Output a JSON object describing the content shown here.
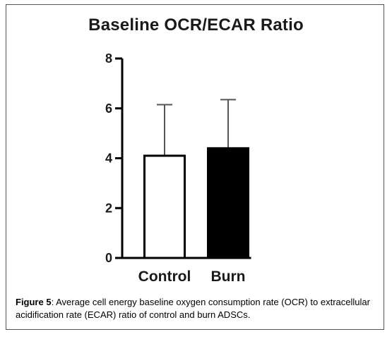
{
  "chart_data": {
    "type": "bar",
    "title": "Baseline OCR/ECAR Ratio",
    "categories": [
      "Control",
      "Burn"
    ],
    "values": [
      4.1,
      4.4
    ],
    "error_upper": [
      6.15,
      6.35
    ],
    "bar_fills": [
      "#ffffff",
      "#000000"
    ],
    "ylim": [
      0,
      8
    ],
    "yticks": [
      0,
      2,
      4,
      6,
      8
    ],
    "grid": false,
    "xlabel": "",
    "ylabel": ""
  },
  "caption": {
    "label": "Figure 5",
    "text": ": Average cell energy baseline oxygen consumption rate (OCR) to extracellular acidification rate (ECAR) ratio of control and burn ADSCs."
  }
}
